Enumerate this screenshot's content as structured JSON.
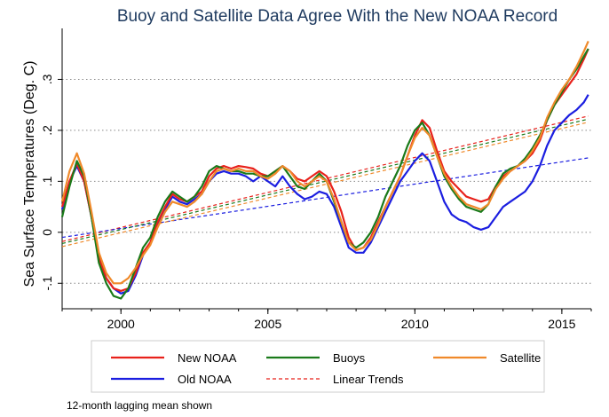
{
  "chart_data": {
    "type": "line",
    "title": "Buoy and Satellite Data Agree With the New NOAA Record",
    "xlabel": "",
    "ylabel": "Sea Surface Temperatures (Deg. C)",
    "xlim": [
      1998,
      2016
    ],
    "ylim": [
      -0.15,
      0.4
    ],
    "xticks": [
      2000,
      2005,
      2010,
      2015
    ],
    "xtick_labels": [
      "2000",
      "2005",
      "2010",
      "2015"
    ],
    "yticks": [
      -0.1,
      0,
      0.1,
      0.2,
      0.3
    ],
    "ytick_labels": [
      "-.1",
      "0",
      ".1",
      ".2",
      ".3"
    ],
    "grid": "horizontal dotted",
    "legend_position": "bottom",
    "note": "12-month lagging mean shown",
    "series": [
      {
        "name": "New NOAA",
        "color": "#e8211b",
        "x": [
          1998.0,
          1998.25,
          1998.5,
          1998.75,
          1999.0,
          1999.25,
          1999.5,
          1999.75,
          2000.0,
          2000.25,
          2000.5,
          2000.75,
          2001.0,
          2001.25,
          2001.5,
          2001.75,
          2002.0,
          2002.25,
          2002.5,
          2002.75,
          2003.0,
          2003.25,
          2003.5,
          2003.75,
          2004.0,
          2004.25,
          2004.5,
          2004.75,
          2005.0,
          2005.25,
          2005.5,
          2005.75,
          2006.0,
          2006.25,
          2006.5,
          2006.75,
          2007.0,
          2007.25,
          2007.5,
          2007.75,
          2008.0,
          2008.25,
          2008.5,
          2008.75,
          2009.0,
          2009.25,
          2009.5,
          2009.75,
          2010.0,
          2010.25,
          2010.5,
          2010.75,
          2011.0,
          2011.25,
          2011.5,
          2011.75,
          2012.0,
          2012.25,
          2012.5,
          2012.75,
          2013.0,
          2013.25,
          2013.5,
          2013.75,
          2014.0,
          2014.25,
          2014.5,
          2014.75,
          2015.0,
          2015.25,
          2015.5,
          2015.75,
          2015.9
        ],
        "values": [
          0.05,
          0.1,
          0.135,
          0.1,
          0.03,
          -0.05,
          -0.09,
          -0.11,
          -0.115,
          -0.11,
          -0.08,
          -0.04,
          -0.02,
          0.02,
          0.05,
          0.075,
          0.065,
          0.06,
          0.07,
          0.08,
          0.11,
          0.125,
          0.13,
          0.125,
          0.13,
          0.128,
          0.125,
          0.115,
          0.11,
          0.12,
          0.13,
          0.12,
          0.105,
          0.1,
          0.11,
          0.12,
          0.11,
          0.08,
          0.04,
          -0.01,
          -0.035,
          -0.03,
          -0.01,
          0.02,
          0.05,
          0.08,
          0.11,
          0.15,
          0.19,
          0.22,
          0.205,
          0.16,
          0.12,
          0.1,
          0.085,
          0.07,
          0.065,
          0.06,
          0.065,
          0.09,
          0.11,
          0.12,
          0.13,
          0.14,
          0.155,
          0.18,
          0.22,
          0.25,
          0.27,
          0.29,
          0.31,
          0.34,
          0.36
        ]
      },
      {
        "name": "Old NOAA",
        "color": "#1b1ee0",
        "x": [
          1998.0,
          1998.25,
          1998.5,
          1998.75,
          1999.0,
          1999.25,
          1999.5,
          1999.75,
          2000.0,
          2000.25,
          2000.5,
          2000.75,
          2001.0,
          2001.25,
          2001.5,
          2001.75,
          2002.0,
          2002.25,
          2002.5,
          2002.75,
          2003.0,
          2003.25,
          2003.5,
          2003.75,
          2004.0,
          2004.25,
          2004.5,
          2004.75,
          2005.0,
          2005.25,
          2005.5,
          2005.75,
          2006.0,
          2006.25,
          2006.5,
          2006.75,
          2007.0,
          2007.25,
          2007.5,
          2007.75,
          2008.0,
          2008.25,
          2008.5,
          2008.75,
          2009.0,
          2009.25,
          2009.5,
          2009.75,
          2010.0,
          2010.25,
          2010.5,
          2010.75,
          2011.0,
          2011.25,
          2011.5,
          2011.75,
          2012.0,
          2012.25,
          2012.5,
          2012.75,
          2013.0,
          2013.25,
          2013.5,
          2013.75,
          2014.0,
          2014.25,
          2014.5,
          2014.75,
          2015.0,
          2015.25,
          2015.5,
          2015.75,
          2015.9
        ],
        "values": [
          0.045,
          0.1,
          0.13,
          0.1,
          0.03,
          -0.05,
          -0.09,
          -0.11,
          -0.12,
          -0.115,
          -0.085,
          -0.045,
          -0.02,
          0.015,
          0.045,
          0.07,
          0.06,
          0.055,
          0.065,
          0.075,
          0.1,
          0.115,
          0.12,
          0.115,
          0.115,
          0.11,
          0.1,
          0.11,
          0.1,
          0.09,
          0.11,
          0.09,
          0.075,
          0.065,
          0.07,
          0.08,
          0.075,
          0.05,
          0.01,
          -0.03,
          -0.04,
          -0.04,
          -0.02,
          0.01,
          0.04,
          0.07,
          0.1,
          0.12,
          0.14,
          0.155,
          0.14,
          0.1,
          0.06,
          0.035,
          0.025,
          0.02,
          0.01,
          0.005,
          0.01,
          0.03,
          0.05,
          0.06,
          0.07,
          0.08,
          0.1,
          0.13,
          0.17,
          0.2,
          0.215,
          0.23,
          0.24,
          0.255,
          0.27
        ]
      },
      {
        "name": "Buoys",
        "color": "#1a7a1a",
        "x": [
          1998.0,
          1998.25,
          1998.5,
          1998.75,
          1999.0,
          1999.25,
          1999.5,
          1999.75,
          2000.0,
          2000.25,
          2000.5,
          2000.75,
          2001.0,
          2001.25,
          2001.5,
          2001.75,
          2002.0,
          2002.25,
          2002.5,
          2002.75,
          2003.0,
          2003.25,
          2003.5,
          2003.75,
          2004.0,
          2004.25,
          2004.5,
          2004.75,
          2005.0,
          2005.25,
          2005.5,
          2005.75,
          2006.0,
          2006.25,
          2006.5,
          2006.75,
          2007.0,
          2007.25,
          2007.5,
          2007.75,
          2008.0,
          2008.25,
          2008.5,
          2008.75,
          2009.0,
          2009.25,
          2009.5,
          2009.75,
          2010.0,
          2010.25,
          2010.5,
          2010.75,
          2011.0,
          2011.25,
          2011.5,
          2011.75,
          2012.0,
          2012.25,
          2012.5,
          2012.75,
          2013.0,
          2013.25,
          2013.5,
          2013.75,
          2014.0,
          2014.25,
          2014.5,
          2014.75,
          2015.0,
          2015.25,
          2015.5,
          2015.75,
          2015.9
        ],
        "values": [
          0.03,
          0.09,
          0.14,
          0.11,
          0.03,
          -0.06,
          -0.1,
          -0.125,
          -0.13,
          -0.11,
          -0.07,
          -0.03,
          -0.01,
          0.03,
          0.06,
          0.08,
          0.07,
          0.06,
          0.07,
          0.09,
          0.12,
          0.13,
          0.125,
          0.12,
          0.12,
          0.115,
          0.115,
          0.11,
          0.11,
          0.12,
          0.13,
          0.11,
          0.09,
          0.085,
          0.1,
          0.115,
          0.1,
          0.06,
          0.02,
          -0.02,
          -0.03,
          -0.02,
          0.0,
          0.03,
          0.07,
          0.1,
          0.13,
          0.17,
          0.2,
          0.215,
          0.19,
          0.15,
          0.11,
          0.085,
          0.065,
          0.05,
          0.045,
          0.04,
          0.055,
          0.09,
          0.115,
          0.125,
          0.13,
          0.145,
          0.165,
          0.19,
          0.22,
          0.25,
          0.275,
          0.3,
          0.32,
          0.345,
          0.36
        ]
      },
      {
        "name": "Satellite",
        "color": "#f0892a",
        "x": [
          1998.0,
          1998.25,
          1998.5,
          1998.75,
          1999.0,
          1999.25,
          1999.5,
          1999.75,
          2000.0,
          2000.25,
          2000.5,
          2000.75,
          2001.0,
          2001.25,
          2001.5,
          2001.75,
          2002.0,
          2002.25,
          2002.5,
          2002.75,
          2003.0,
          2003.25,
          2003.5,
          2003.75,
          2004.0,
          2004.25,
          2004.5,
          2004.75,
          2005.0,
          2005.25,
          2005.5,
          2005.75,
          2006.0,
          2006.25,
          2006.5,
          2006.75,
          2007.0,
          2007.25,
          2007.5,
          2007.75,
          2008.0,
          2008.25,
          2008.5,
          2008.75,
          2009.0,
          2009.25,
          2009.5,
          2009.75,
          2010.0,
          2010.25,
          2010.5,
          2010.75,
          2011.0,
          2011.25,
          2011.5,
          2011.75,
          2012.0,
          2012.25,
          2012.5,
          2012.75,
          2013.0,
          2013.25,
          2013.5,
          2013.75,
          2014.0,
          2014.25,
          2014.5,
          2014.75,
          2015.0,
          2015.25,
          2015.5,
          2015.75,
          2015.9
        ],
        "values": [
          0.06,
          0.12,
          0.155,
          0.115,
          0.04,
          -0.04,
          -0.08,
          -0.1,
          -0.1,
          -0.09,
          -0.07,
          -0.045,
          -0.025,
          0.01,
          0.04,
          0.06,
          0.055,
          0.05,
          0.06,
          0.075,
          0.1,
          0.12,
          0.125,
          0.12,
          0.125,
          0.12,
          0.12,
          0.11,
          0.105,
          0.115,
          0.13,
          0.12,
          0.1,
          0.09,
          0.1,
          0.11,
          0.1,
          0.065,
          0.02,
          -0.02,
          -0.035,
          -0.03,
          -0.015,
          0.015,
          0.05,
          0.08,
          0.11,
          0.15,
          0.185,
          0.205,
          0.19,
          0.15,
          0.115,
          0.09,
          0.07,
          0.055,
          0.05,
          0.045,
          0.055,
          0.085,
          0.105,
          0.12,
          0.13,
          0.14,
          0.16,
          0.185,
          0.225,
          0.255,
          0.28,
          0.3,
          0.325,
          0.355,
          0.375
        ]
      }
    ],
    "trends": [
      {
        "series": "New NOAA",
        "color": "#e8211b",
        "x": [
          1998.0,
          2015.9
        ],
        "values": [
          -0.018,
          0.228
        ]
      },
      {
        "series": "Old NOAA",
        "color": "#1b1ee0",
        "x": [
          1998.0,
          2015.9
        ],
        "values": [
          -0.01,
          0.146
        ]
      },
      {
        "series": "Buoys",
        "color": "#1a7a1a",
        "x": [
          1998.0,
          2015.9
        ],
        "values": [
          -0.022,
          0.222
        ]
      },
      {
        "series": "Satellite",
        "color": "#f0892a",
        "x": [
          1998.0,
          2015.9
        ],
        "values": [
          -0.028,
          0.216
        ]
      }
    ],
    "legend": [
      {
        "label": "New NOAA",
        "color": "#e8211b",
        "style": "solid"
      },
      {
        "label": "Buoys",
        "color": "#1a7a1a",
        "style": "solid"
      },
      {
        "label": "Satellite",
        "color": "#f0892a",
        "style": "solid"
      },
      {
        "label": "Old NOAA",
        "color": "#1b1ee0",
        "style": "solid"
      },
      {
        "label": "Linear Trends",
        "color": "#e8211b",
        "style": "dashed"
      }
    ]
  }
}
